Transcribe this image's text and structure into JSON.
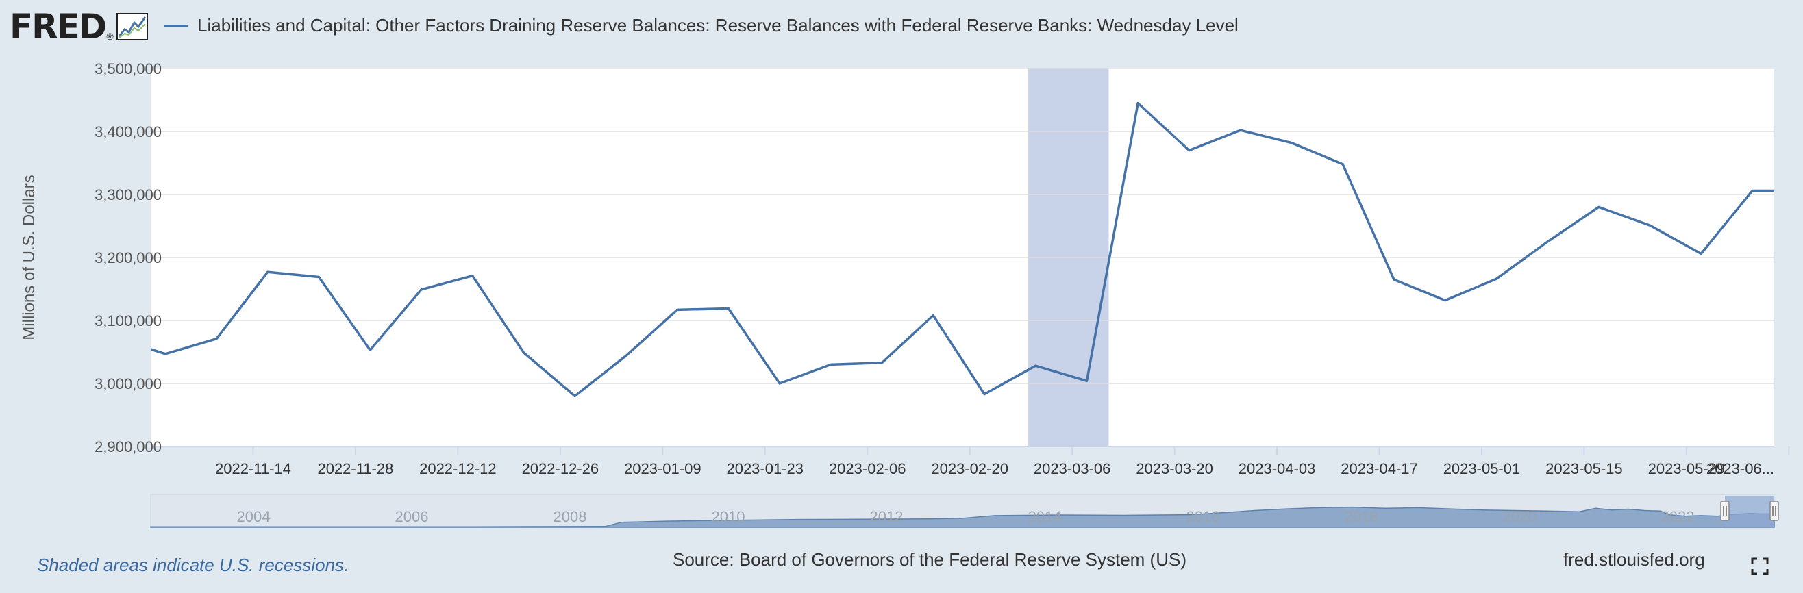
{
  "logo": {
    "text": "FRED",
    "mark": "®",
    "icon": "line-chart-icon"
  },
  "legend": {
    "label": "Liabilities and Capital: Other Factors Draining Reserve Balances: Reserve Balances with Federal Reserve Banks: Wednesday Level",
    "color": "#4572a7"
  },
  "footer": {
    "recession_note": "Shaded areas indicate U.S. recessions.",
    "source": "Source: Board of Governors of the Federal Reserve System (US)",
    "site": "fred.stlouisfed.org"
  },
  "navigator": {
    "year_labels": [
      "2004",
      "2006",
      "2008",
      "2010",
      "2012",
      "2014",
      "2016",
      "2018",
      "2020",
      "2022"
    ]
  },
  "chart_data": {
    "type": "line",
    "title": "",
    "xlabel": "",
    "ylabel": "Millions of U.S. Dollars",
    "ylim": [
      2900000,
      3500000
    ],
    "yticks": [
      2900000,
      3000000,
      3100000,
      3200000,
      3300000,
      3400000,
      3500000
    ],
    "ytick_labels": [
      "2,900,000",
      "3,000,000",
      "3,100,000",
      "3,200,000",
      "3,300,000",
      "3,400,000",
      "3,500,000"
    ],
    "xlim": [
      "2022-10-31",
      "2023-06-10"
    ],
    "xtick_dates": [
      "2022-11-14",
      "2022-11-28",
      "2022-12-12",
      "2022-12-26",
      "2023-01-09",
      "2023-01-23",
      "2023-02-06",
      "2023-02-20",
      "2023-03-06",
      "2023-03-20",
      "2023-04-03",
      "2023-04-17",
      "2023-05-01",
      "2023-05-15",
      "2023-05-29",
      "2023-06-12"
    ],
    "xtick_labels": [
      "2022-11-14",
      "2022-11-28",
      "2022-12-12",
      "2022-12-26",
      "2023-01-09",
      "2023-01-23",
      "2023-02-06",
      "2023-02-20",
      "2023-03-06",
      "2023-03-20",
      "2023-04-03",
      "2023-04-17",
      "2023-05-01",
      "2023-05-15",
      "2023-05-29",
      "2023-06..."
    ],
    "shaded_regions": [
      {
        "start": "2023-02-28",
        "end": "2023-03-11"
      }
    ],
    "grid": true,
    "legend_position": "top",
    "series": [
      {
        "name": "Liabilities and Capital: Other Factors Draining Reserve Balances: Reserve Balances with Federal Reserve Banks: Wednesday Level",
        "color": "#4572a7",
        "x": [
          "2022-10-30",
          "2022-11-02",
          "2022-11-09",
          "2022-11-16",
          "2022-11-23",
          "2022-11-30",
          "2022-12-07",
          "2022-12-14",
          "2022-12-21",
          "2022-12-28",
          "2023-01-04",
          "2023-01-11",
          "2023-01-18",
          "2023-01-25",
          "2023-02-01",
          "2023-02-08",
          "2023-02-15",
          "2023-02-22",
          "2023-03-01",
          "2023-03-08",
          "2023-03-15",
          "2023-03-22",
          "2023-03-29",
          "2023-04-05",
          "2023-04-12",
          "2023-04-19",
          "2023-04-26",
          "2023-05-03",
          "2023-05-10",
          "2023-05-17",
          "2023-05-24",
          "2023-05-31",
          "2023-06-07",
          "2023-06-14"
        ],
        "y": [
          3058000,
          3047000,
          3071000,
          3177000,
          3169000,
          3053000,
          3149000,
          3171000,
          3049000,
          2980000,
          3044000,
          3117000,
          3119000,
          3000000,
          3030000,
          3033000,
          3108000,
          2983000,
          3028000,
          3004000,
          3445000,
          3370000,
          3402000,
          3382000,
          3348000,
          3165000,
          3132000,
          3166000,
          3225000,
          3280000,
          3251000,
          3206000,
          3306000,
          3306000
        ]
      }
    ]
  }
}
